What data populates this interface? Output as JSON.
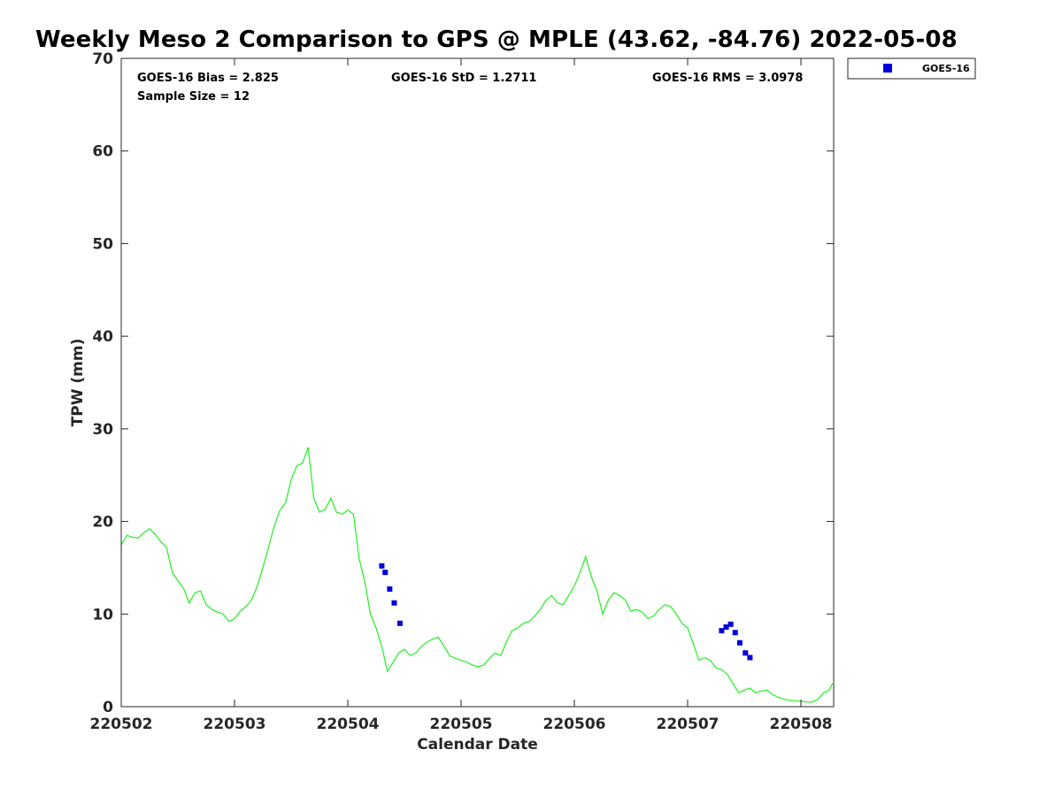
{
  "chart_data": {
    "type": "line",
    "title": "Weekly Meso 2 Comparison to GPS @ MPLE (43.62, -84.76) 2022-05-08",
    "xlabel": "Calendar Date",
    "ylabel": "TPW (mm)",
    "xlim": [
      0,
      6.3
    ],
    "ylim": [
      0,
      70
    ],
    "x_ticks": [
      {
        "value": 0,
        "label": "220502"
      },
      {
        "value": 1,
        "label": "220503"
      },
      {
        "value": 2,
        "label": "220504"
      },
      {
        "value": 3,
        "label": "220505"
      },
      {
        "value": 4,
        "label": "220506"
      },
      {
        "value": 5,
        "label": "220507"
      },
      {
        "value": 6,
        "label": "220508"
      }
    ],
    "y_ticks": [
      0,
      10,
      20,
      30,
      40,
      50,
      60,
      70
    ],
    "stats": {
      "bias": "GOES-16 Bias = 2.825",
      "std": "GOES-16 StD = 1.2711",
      "rms": "GOES-16 RMS = 3.0978",
      "sample": "Sample Size = 12"
    },
    "legend": {
      "label": "GOES-16",
      "position": "top-right"
    },
    "series": [
      {
        "name": "GPS",
        "color": "#22ee22",
        "style": "line",
        "x": [
          0,
          0.05,
          0.1,
          0.15,
          0.2,
          0.25,
          0.3,
          0.35,
          0.4,
          0.45,
          0.5,
          0.55,
          0.6,
          0.65,
          0.7,
          0.75,
          0.8,
          0.85,
          0.9,
          0.95,
          1.0,
          1.05,
          1.1,
          1.15,
          1.2,
          1.25,
          1.3,
          1.35,
          1.4,
          1.45,
          1.5,
          1.55,
          1.6,
          1.65,
          1.7,
          1.75,
          1.8,
          1.85,
          1.9,
          1.95,
          2.0,
          2.05,
          2.1,
          2.15,
          2.2,
          2.25,
          2.3,
          2.35,
          2.4,
          2.45,
          2.5,
          2.55,
          2.6,
          2.65,
          2.7,
          2.75,
          2.8,
          2.85,
          2.9,
          2.95,
          3.0,
          3.05,
          3.1,
          3.15,
          3.2,
          3.25,
          3.3,
          3.35,
          3.4,
          3.45,
          3.5,
          3.55,
          3.6,
          3.65,
          3.7,
          3.75,
          3.8,
          3.85,
          3.9,
          3.95,
          4.0,
          4.05,
          4.1,
          4.15,
          4.2,
          4.25,
          4.3,
          4.35,
          4.4,
          4.45,
          4.5,
          4.55,
          4.6,
          4.65,
          4.7,
          4.75,
          4.8,
          4.85,
          4.9,
          4.95,
          5.0,
          5.05,
          5.1,
          5.15,
          5.2,
          5.25,
          5.3,
          5.35,
          5.4,
          5.45,
          5.5,
          5.55,
          5.6,
          5.65,
          5.7,
          5.75,
          5.8,
          5.85,
          5.9,
          5.95,
          6.0,
          6.05,
          6.1,
          6.15,
          6.2,
          6.25,
          6.28
        ],
        "values": [
          17.5,
          18.5,
          18.3,
          18.2,
          18.8,
          19.2,
          18.6,
          17.8,
          17.2,
          14.5,
          13.6,
          12.8,
          11.2,
          12.3,
          12.5,
          11.0,
          10.5,
          10.2,
          10.0,
          9.2,
          9.5,
          10.3,
          10.8,
          11.5,
          13.0,
          15.0,
          17.2,
          19.5,
          21.2,
          22.0,
          24.5,
          26.0,
          26.3,
          28.0,
          22.5,
          21.0,
          21.3,
          22.5,
          21.0,
          20.8,
          21.2,
          20.8,
          16.0,
          13.5,
          10.0,
          8.5,
          6.5,
          3.8,
          4.8,
          5.8,
          6.2,
          5.5,
          5.8,
          6.5,
          7.0,
          7.3,
          7.5,
          6.5,
          5.5,
          5.2,
          5.0,
          4.8,
          4.5,
          4.3,
          4.5,
          5.2,
          5.8,
          5.5,
          7.0,
          8.2,
          8.5,
          9.0,
          9.2,
          9.8,
          10.5,
          11.5,
          12.0,
          11.2,
          11.0,
          12.0,
          13.0,
          14.5,
          16.2,
          14.0,
          12.5,
          10.0,
          11.5,
          12.3,
          12.0,
          11.5,
          10.3,
          10.5,
          10.2,
          9.5,
          9.8,
          10.5,
          11.0,
          10.8,
          10.0,
          9.0,
          8.5,
          6.8,
          5.0,
          5.3,
          5.0,
          4.2,
          4.0,
          3.5,
          2.5,
          1.5,
          1.8,
          2.0,
          1.5,
          1.7,
          1.8,
          1.3,
          1.0,
          0.8,
          0.7,
          0.6,
          0.6,
          0.5,
          0.5,
          0.8,
          1.5,
          1.8,
          2.5
        ]
      },
      {
        "name": "GOES-16",
        "color": "#0000dd",
        "style": "square-markers",
        "x": [
          2.3,
          2.33,
          2.37,
          2.41,
          2.46,
          5.3,
          5.34,
          5.38,
          5.42,
          5.46,
          5.51,
          5.55
        ],
        "values": [
          15.2,
          14.5,
          12.7,
          11.2,
          9.0,
          8.2,
          8.6,
          8.9,
          8.0,
          6.9,
          5.8,
          5.3
        ]
      }
    ]
  }
}
